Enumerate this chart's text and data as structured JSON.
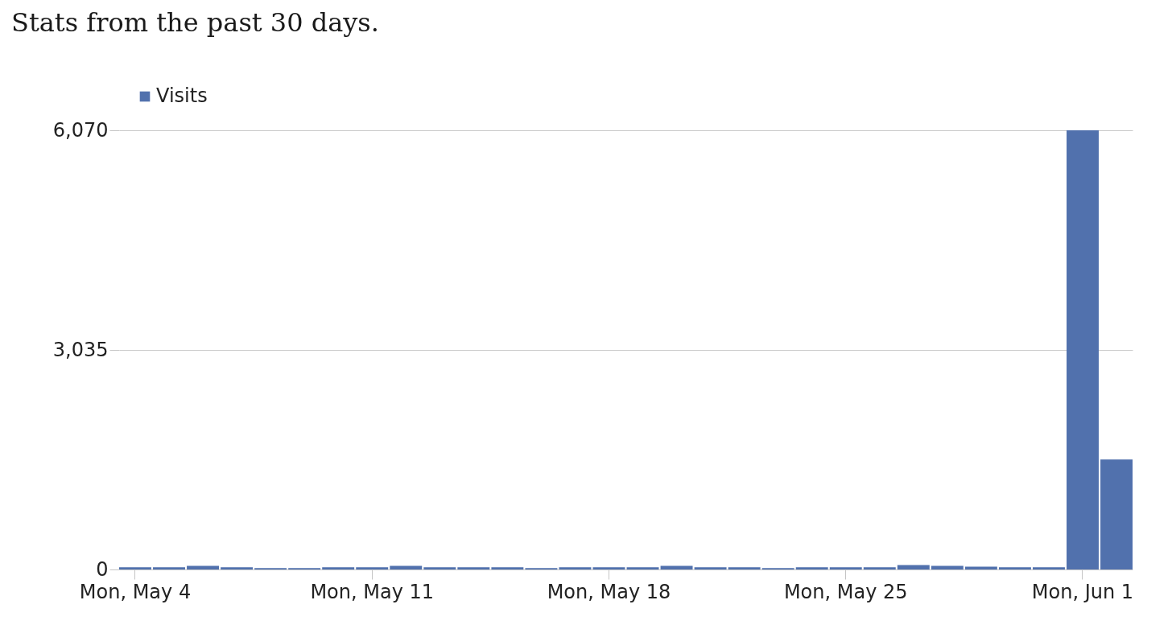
{
  "chart_data": {
    "type": "bar",
    "title": "Stats from the past 30 days.",
    "categories": [
      "Mon, May 4",
      null,
      null,
      null,
      null,
      null,
      null,
      "Mon, May 11",
      null,
      null,
      null,
      null,
      null,
      null,
      "Mon, May 18",
      null,
      null,
      null,
      null,
      null,
      null,
      "Mon, May 25",
      null,
      null,
      null,
      null,
      null,
      null,
      "Mon, Jun 1",
      null
    ],
    "series": [
      {
        "name": "Visits",
        "color": "#5171ad",
        "values": [
          30,
          30,
          50,
          30,
          20,
          20,
          30,
          30,
          50,
          30,
          30,
          30,
          20,
          30,
          30,
          30,
          50,
          30,
          30,
          20,
          30,
          30,
          30,
          60,
          50,
          40,
          30,
          30,
          6070,
          1520
        ]
      }
    ],
    "ylim": [
      0,
      6070
    ],
    "yticks": [
      0,
      {
        "value": 3035,
        "label": "3,035"
      },
      {
        "value": 6070,
        "label": "6,070"
      }
    ],
    "grid": "y",
    "legend": "top left"
  }
}
